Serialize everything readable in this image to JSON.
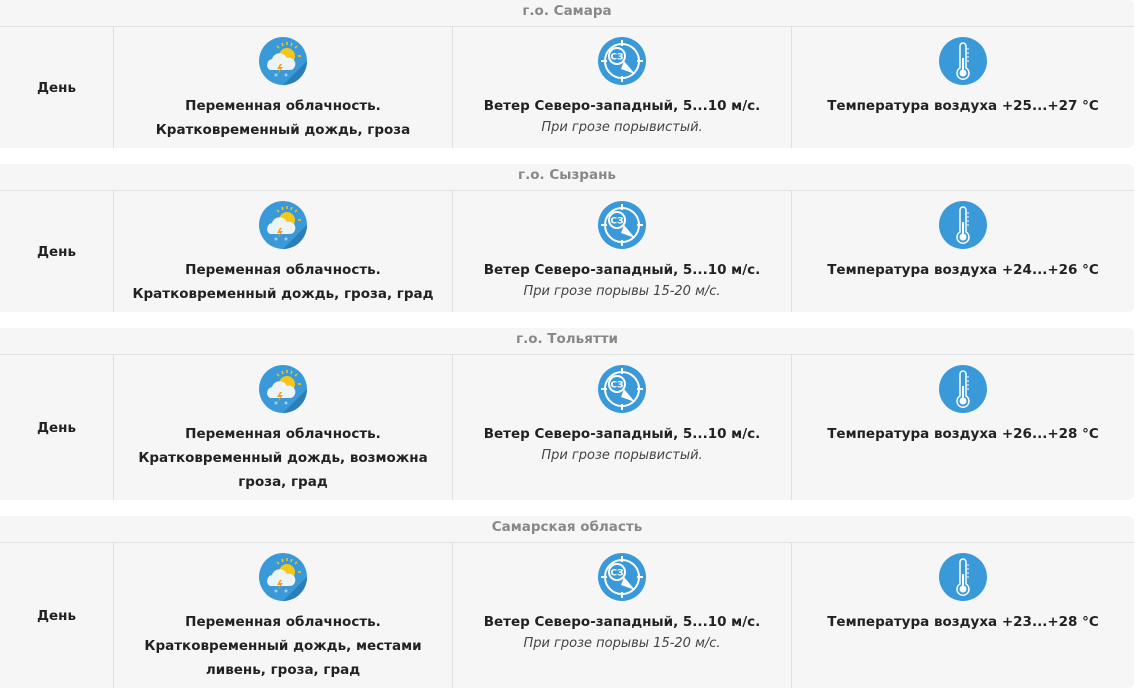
{
  "blocks": [
    {
      "region": "г.о. Самара",
      "day": "День",
      "cond1": "Переменная облачность.",
      "cond2": "Кратковременный дождь, гроза",
      "wind": "Ветер Северо-западный, 5...10 м/с.",
      "wind_note": "При грозе порывистый.",
      "temp": "Температура воздуха +25...+27 °С",
      "icons": [
        "partly-cloudy-thunderstorm-icon",
        "wind-nw-icon",
        "thermometer-icon"
      ]
    },
    {
      "region": "г.о. Сызрань",
      "day": "День",
      "cond1": "Переменная облачность.",
      "cond2": "Кратковременный дождь, гроза, град",
      "wind": "Ветер Северо-западный, 5...10 м/с.",
      "wind_note": "При грозе порывы 15-20 м/с.",
      "temp": "Температура воздуха +24...+26 °С"
    },
    {
      "region": "г.о. Тольятти",
      "day": "День",
      "cond1": "Переменная облачность.",
      "cond2": "Кратковременный дождь, возможна гроза, град",
      "wind": "Ветер Северо-западный, 5...10 м/с.",
      "wind_note": "При грозе порывистый.",
      "temp": "Температура воздуха +26...+28 °С"
    },
    {
      "region": "Самарская область",
      "day": "День",
      "cond1": "Переменная облачность.",
      "cond2": "Кратковременный дождь, местами ливень, гроза, град",
      "wind": "Ветер Северо-западный, 5...10 м/с.",
      "wind_note": "При грозе порывы 15-20 м/с.",
      "temp": "Температура воздуха +23...+28 °С"
    }
  ],
  "wind_icon_text": "СЗ",
  "colors": {
    "icon_blue": "#3a9ad9",
    "sun": "#f5c518",
    "header_text": "#888888",
    "bg": "#f6f6f6"
  }
}
